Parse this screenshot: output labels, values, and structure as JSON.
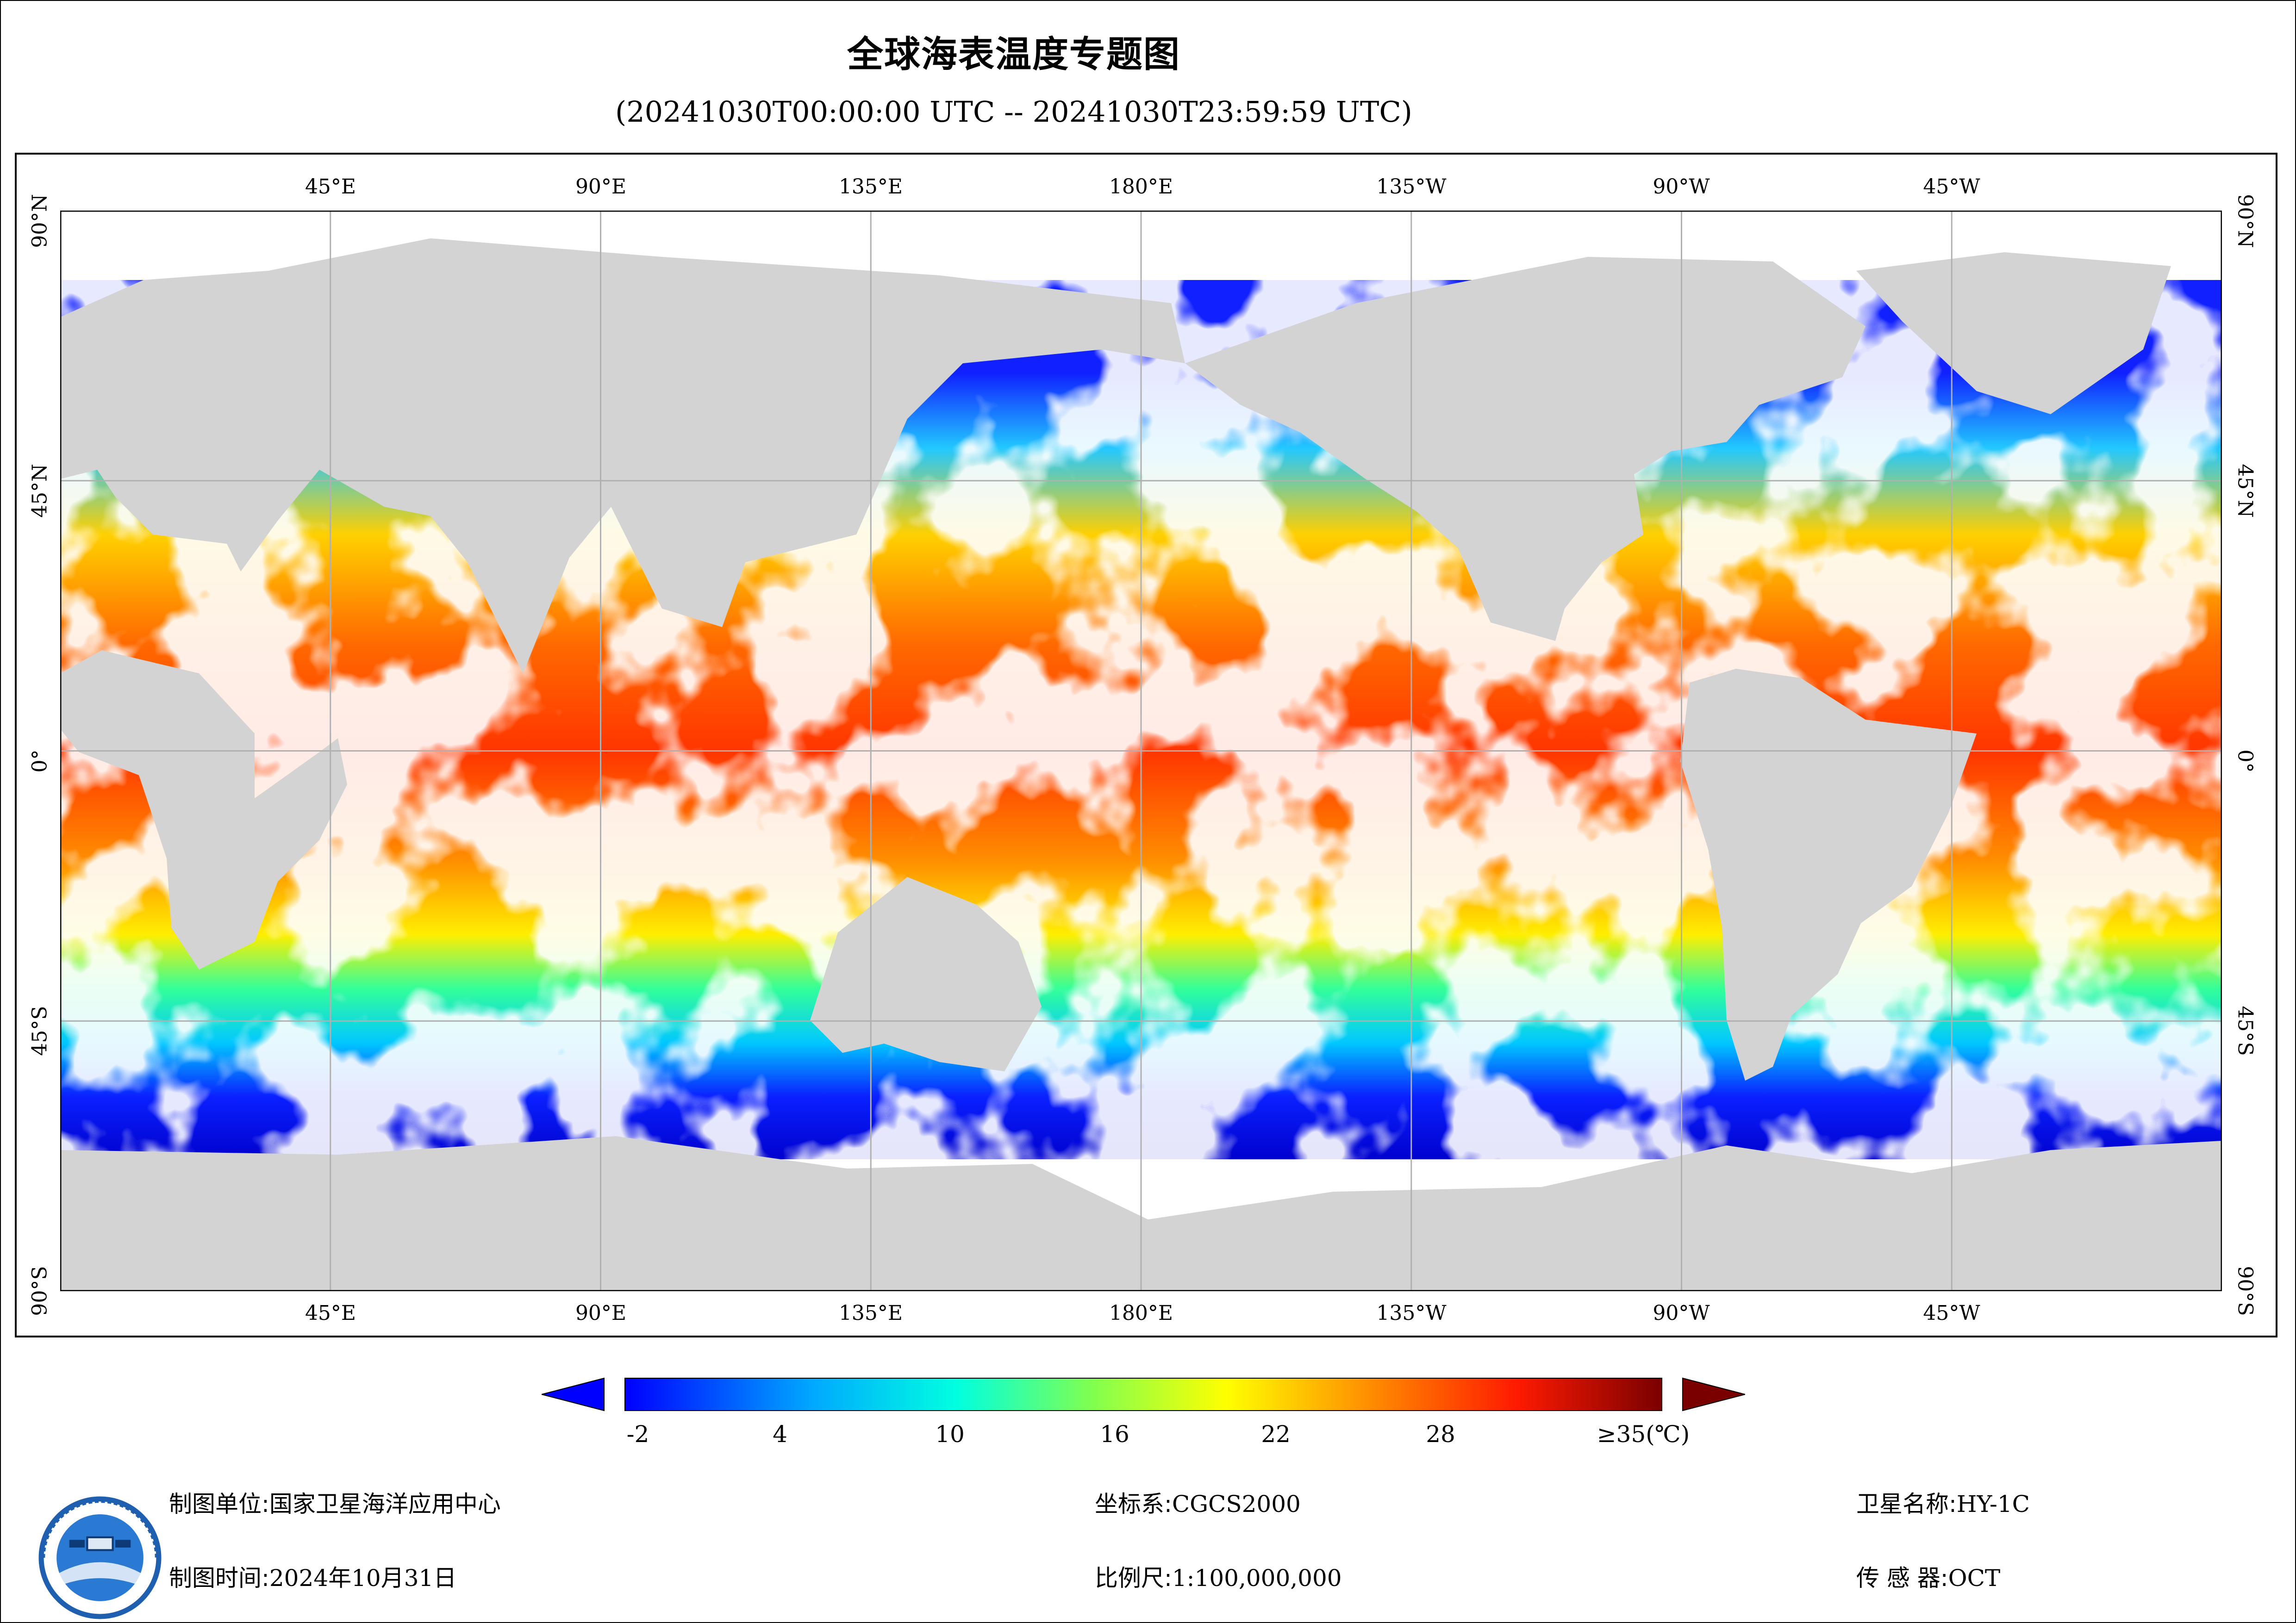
{
  "title": "全球海表温度专题图",
  "subtitle": "(20241030T00:00:00 UTC -- 20241030T23:59:59 UTC)",
  "map": {
    "lon_labels": [
      "45°E",
      "90°E",
      "135°E",
      "180°E",
      "135°W",
      "90°W",
      "45°W"
    ],
    "lat_labels": [
      "90°N",
      "45°N",
      "0°",
      "45°S",
      "90°S"
    ],
    "land_color": "#d3d3d3",
    "nodata_color": "#ffffff",
    "grid_color": "#b0b0b0"
  },
  "colorbar": {
    "ticks": [
      "-2",
      "4",
      "10",
      "16",
      "22",
      "28",
      "≥35(℃)"
    ],
    "range": [
      -2,
      35
    ],
    "colors": [
      "#0000ff",
      "#00c8ff",
      "#33ff99",
      "#ffff00",
      "#ff8c00",
      "#ff2200",
      "#7a0000"
    ]
  },
  "info": {
    "org_label": "制图单位:",
    "org_value": "国家卫星海洋应用中心",
    "time_label": "制图时间:",
    "time_value": "2024年10月31日",
    "crs_label": "坐标系:",
    "crs_value": "CGCS2000",
    "scale_label": "比例尺:",
    "scale_value": "1:100,000,000",
    "sat_label": "卫星名称:",
    "sat_value": "HY-1C",
    "sensor_label": "传 感 器:",
    "sensor_value": "OCT"
  },
  "logo": {
    "icon": "satellite-ocean-logo"
  }
}
